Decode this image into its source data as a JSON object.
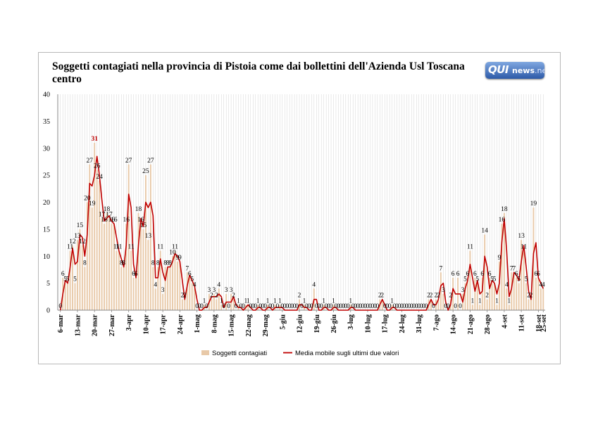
{
  "chart_data": {
    "type": "bar",
    "title": "Soggetti contagiati nella provincia di Pistoia come dai bollettini dell'Azienda Usl Toscana centro",
    "ylim": [
      0,
      40
    ],
    "yticks": [
      0,
      5,
      10,
      15,
      20,
      25,
      30,
      35,
      40
    ],
    "grid": "vertical",
    "legend_position": "bottom",
    "x_labels": [
      "6-mar",
      "13-mar",
      "20-mar",
      "27-mar",
      "3-apr",
      "10-apr",
      "17-apr",
      "24-apr",
      "1-mag",
      "8-mag",
      "15-mag",
      "22-mag",
      "29-mag",
      "5-giu",
      "12-giu",
      "19-giu",
      "26-giu",
      "3-lug",
      "10-lug",
      "17-lug",
      "24-lug",
      "31-lug",
      "7-ago",
      "14-ago",
      "21-ago",
      "28-ago",
      "4-set",
      "11-set",
      "18-set",
      "25-set"
    ],
    "series": [
      {
        "name": "Soggetti contagiati",
        "type": "bar",
        "color": "#e8c9a8",
        "values": [
          0,
          6,
          5,
          5,
          11,
          12,
          5,
          13,
          15,
          12,
          8,
          20,
          27,
          19,
          31,
          26,
          24,
          17,
          16,
          18,
          17,
          16,
          16,
          11,
          11,
          8,
          8,
          16,
          27,
          11,
          6,
          6,
          18,
          16,
          15,
          25,
          13,
          27,
          8,
          4,
          8,
          11,
          3,
          8,
          8,
          8,
          10,
          11,
          9,
          9,
          2,
          2,
          7,
          6,
          5,
          4,
          0,
          0,
          0,
          1,
          0,
          3,
          2,
          3,
          2,
          4,
          1,
          0,
          3,
          0,
          3,
          2,
          0,
          1,
          0,
          0,
          1,
          1,
          0,
          0,
          0,
          1,
          0,
          0,
          0,
          1,
          0,
          0,
          1,
          0,
          1,
          0,
          0,
          0,
          0,
          0,
          0,
          0,
          2,
          0,
          1,
          0,
          0,
          0,
          4,
          0,
          0,
          0,
          1,
          0,
          0,
          0,
          1,
          0,
          0,
          0,
          0,
          0,
          0,
          1,
          0,
          0,
          0,
          0,
          0,
          0,
          0,
          0,
          0,
          0,
          0,
          2,
          2,
          0,
          0,
          0,
          1,
          0,
          0,
          0,
          0,
          0,
          0,
          0,
          0,
          0,
          0,
          0,
          0,
          0,
          0,
          2,
          2,
          0,
          2,
          2,
          7,
          3,
          0,
          0,
          2,
          6,
          0,
          6,
          0,
          3,
          5,
          6,
          11,
          1,
          6,
          5,
          1,
          6,
          14,
          2,
          6,
          5,
          5,
          1,
          9,
          16,
          18,
          4,
          1,
          7,
          7,
          6,
          5,
          13,
          11,
          5,
          2,
          2,
          19,
          6,
          6,
          4,
          4
        ]
      },
      {
        "name": "Media mobile sugli ultimi due valori",
        "type": "line",
        "color": "#c00000"
      }
    ]
  }
}
